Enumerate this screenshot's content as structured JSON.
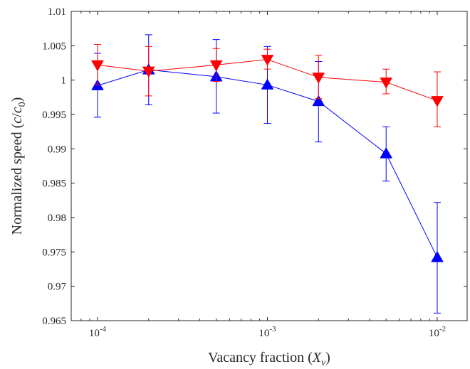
{
  "chart_data": {
    "type": "line",
    "xscale": "log",
    "xlabel": "Vacancy fraction",
    "xlabel_symbol": "X",
    "xlabel_sub": "v",
    "ylabel": "Normalized speed",
    "ylabel_symbol_num": "c",
    "ylabel_symbol_den": "c",
    "ylabel_sub": "0",
    "xlim": [
      7e-05,
      0.015
    ],
    "ylim": [
      0.965,
      1.01
    ],
    "xticks": [
      {
        "value": 0.0001,
        "base": "10",
        "exp": "-4"
      },
      {
        "value": 0.001,
        "base": "10",
        "exp": "-3"
      },
      {
        "value": 0.01,
        "base": "10",
        "exp": "-2"
      }
    ],
    "yticks": [
      {
        "value": 0.965,
        "label": "0.965"
      },
      {
        "value": 0.97,
        "label": "0.97"
      },
      {
        "value": 0.975,
        "label": "0.975"
      },
      {
        "value": 0.98,
        "label": "0.98"
      },
      {
        "value": 0.985,
        "label": "0.985"
      },
      {
        "value": 0.99,
        "label": "0.99"
      },
      {
        "value": 0.995,
        "label": "0.995"
      },
      {
        "value": 1.0,
        "label": "1"
      },
      {
        "value": 1.005,
        "label": "1.005"
      },
      {
        "value": 1.01,
        "label": "1.01"
      }
    ],
    "grid": false,
    "series": [
      {
        "color": "#0000ff",
        "marker": "triangle-up",
        "x": [
          0.0001,
          0.0002,
          0.0005,
          0.001,
          0.002,
          0.005,
          0.01
        ],
        "y": [
          0.9992,
          1.0015,
          1.0005,
          0.9993,
          0.9969,
          0.9893,
          0.9742
        ],
        "err_low": [
          0.9946,
          0.9964,
          0.9952,
          0.9937,
          0.991,
          0.9853,
          0.9661
        ],
        "err_high": [
          1.0039,
          1.0066,
          1.0059,
          1.0049,
          1.0027,
          0.9932,
          0.9822
        ]
      },
      {
        "color": "#ff0000",
        "marker": "triangle-down",
        "x": [
          0.0001,
          0.0002,
          0.0005,
          0.001,
          0.002,
          0.005,
          0.01
        ],
        "y": [
          1.0022,
          1.0013,
          1.0022,
          1.003,
          1.0004,
          0.9997,
          0.997
        ],
        "err_low": [
          0.9993,
          0.9977,
          0.9998,
          1.0016,
          0.9973,
          0.998,
          0.9932
        ],
        "err_high": [
          1.0052,
          1.0049,
          1.0046,
          1.0045,
          1.0036,
          1.0016,
          1.0012
        ]
      }
    ]
  }
}
